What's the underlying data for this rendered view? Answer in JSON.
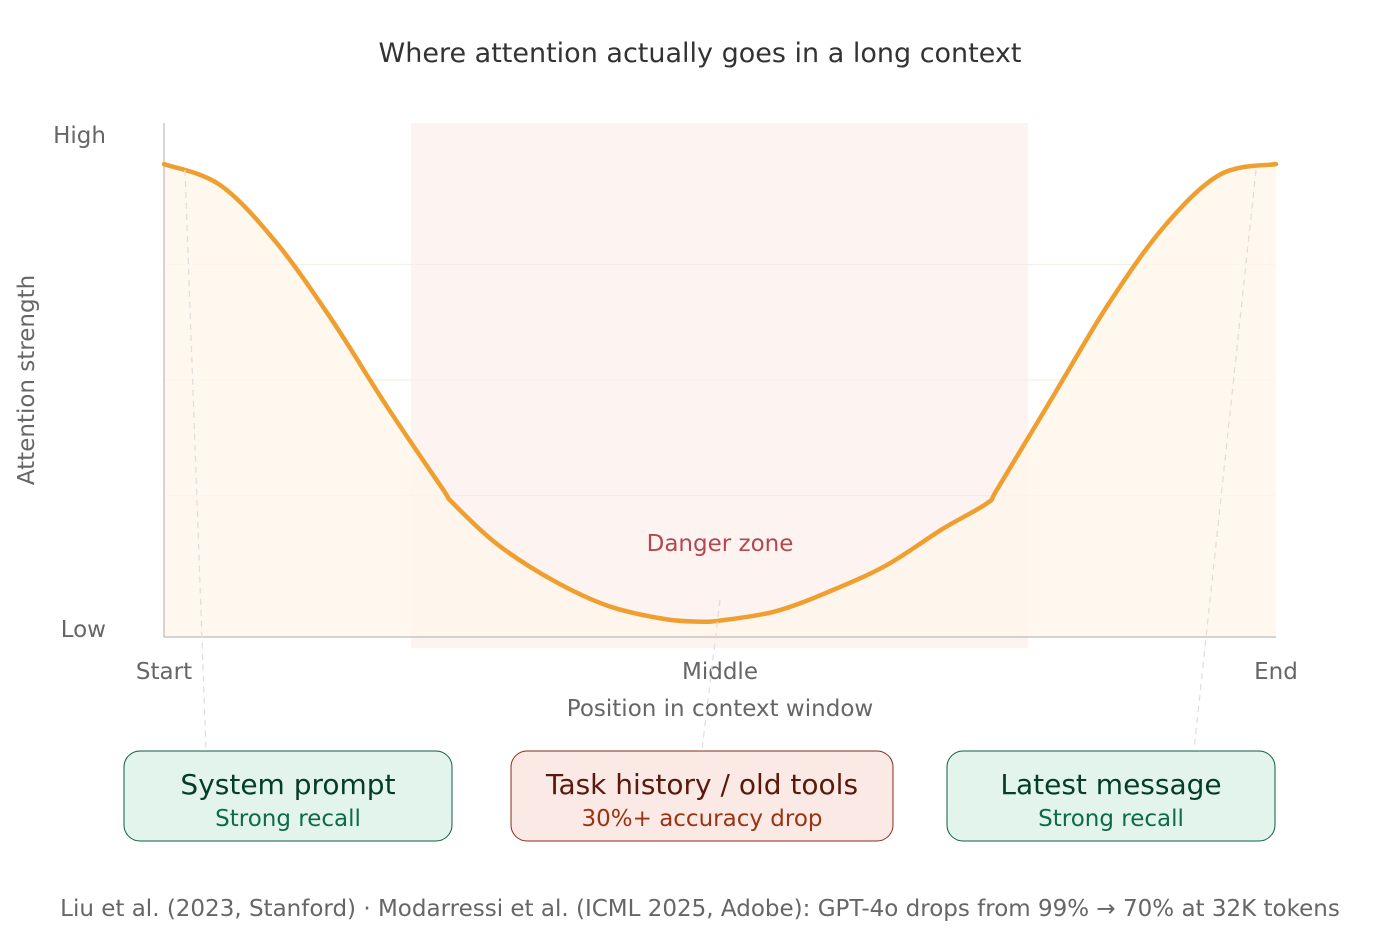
{
  "chart_data": {
    "type": "line",
    "title": "Where attention actually goes in a long context",
    "xlabel": "Position in context window",
    "ylabel": "Attention strength",
    "x_ticks": [
      {
        "position": 0,
        "label": "Start"
      },
      {
        "position": 0.5,
        "label": "Middle"
      },
      {
        "position": 1,
        "label": "End"
      }
    ],
    "y_ticks": [
      {
        "value": 0,
        "label": "Low"
      },
      {
        "value": 1,
        "label": "High"
      }
    ],
    "xlim": [
      0,
      1
    ],
    "ylim": [
      0,
      1
    ],
    "series": [
      {
        "x": [
          0,
          0.05,
          0.1,
          0.15,
          0.2,
          0.25,
          0.26,
          0.3,
          0.35,
          0.4,
          0.45,
          0.48,
          0.5,
          0.55,
          0.6,
          0.65,
          0.7,
          0.74,
          0.75,
          0.8,
          0.85,
          0.9,
          0.95,
          1.0
        ],
        "y": [
          0.92,
          0.88,
          0.77,
          0.62,
          0.45,
          0.29,
          0.26,
          0.18,
          0.11,
          0.06,
          0.035,
          0.03,
          0.032,
          0.05,
          0.09,
          0.14,
          0.21,
          0.26,
          0.29,
          0.47,
          0.65,
          0.8,
          0.9,
          0.92
        ]
      }
    ],
    "danger_zone": {
      "x_start": 0.222,
      "x_end": 0.777,
      "label": "Danger zone"
    },
    "colors": {
      "line": "#ef9f2f",
      "area": "#fdf6ea",
      "danger": "#fbeae6"
    },
    "grid": true
  },
  "cards": [
    {
      "title": "System prompt",
      "subtitle": "Strong recall",
      "x": 0.037
    },
    {
      "title": "Task history / old tools",
      "subtitle": "30%+ accuracy drop",
      "x": 0.485
    },
    {
      "title": "Latest message",
      "subtitle": "Strong recall",
      "x": 0.927
    }
  ],
  "footnote": "Liu et al. (2023, Stanford) · Modarressi et al. (ICML 2025, Adobe): GPT-4o drops from 99% → 70% at 32K tokens"
}
